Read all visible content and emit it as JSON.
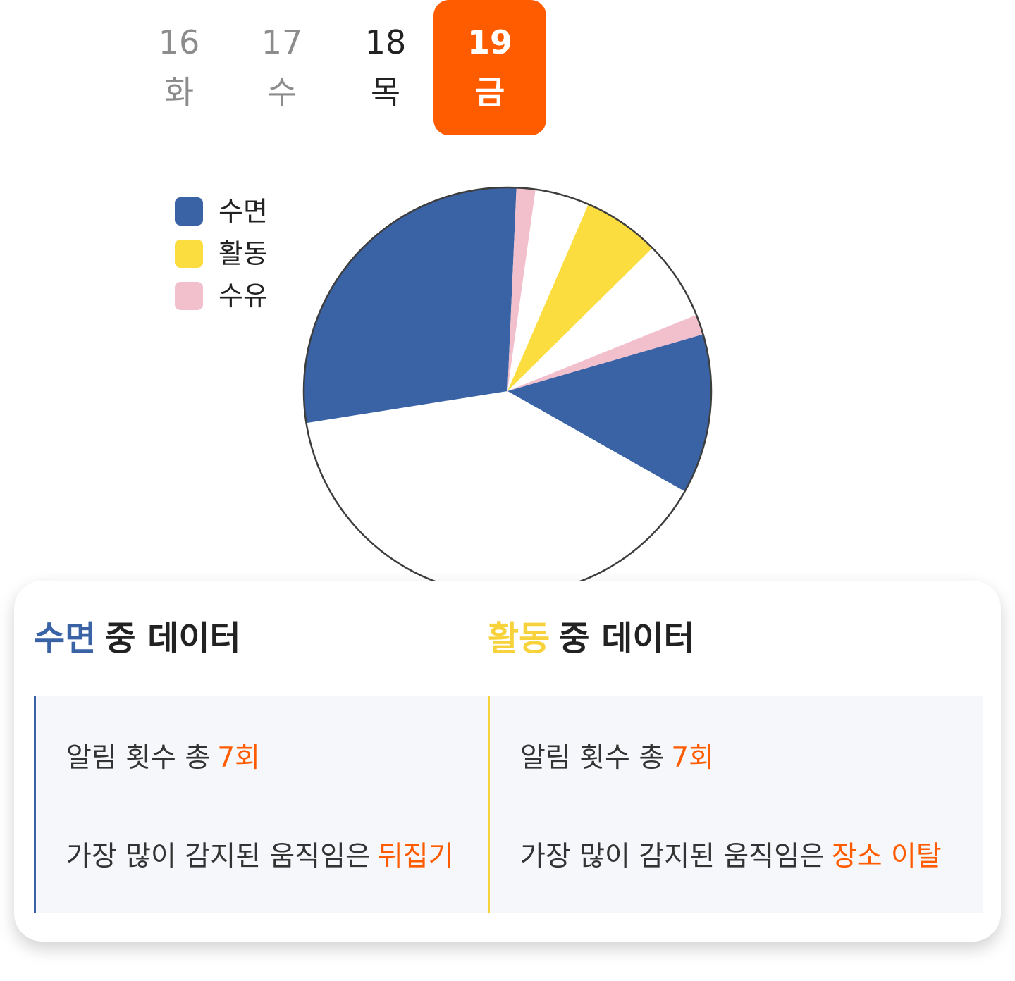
{
  "date_selector": {
    "days": [
      {
        "date": "16",
        "weekday": "화"
      },
      {
        "date": "17",
        "weekday": "수"
      },
      {
        "date": "18",
        "weekday": "목"
      },
      {
        "date": "19",
        "weekday": "금"
      }
    ],
    "selected_date": "19",
    "accent_color": "#ff5c00"
  },
  "legend": [
    {
      "label": "수면",
      "color": "#3a63a6"
    },
    {
      "label": "활동",
      "color": "#fcdd3f"
    },
    {
      "label": "수유",
      "color": "#f2c0cd"
    }
  ],
  "chart_data": {
    "type": "pie",
    "title": "",
    "start_at": "top, clockwise",
    "slices": [
      {
        "category": "수면",
        "color": "#3a63a6",
        "share": 0.7
      },
      {
        "category": "수유",
        "color": "#f2c0cd",
        "share": 1.5
      },
      {
        "category": "",
        "color": "#ffffff",
        "share": 4.3
      },
      {
        "category": "활동",
        "color": "#fcdd3f",
        "share": 6.1
      },
      {
        "category": "",
        "color": "#ffffff",
        "share": 6.3
      },
      {
        "category": "수유",
        "color": "#f2c0cd",
        "share": 1.6
      },
      {
        "category": "수면",
        "color": "#3a63a6",
        "share": 12.7
      },
      {
        "category": "",
        "color": "#ffffff",
        "share": 39.3
      },
      {
        "category": "수면",
        "color": "#3a63a6",
        "share": 27.5
      }
    ]
  },
  "summary": {
    "sleep": {
      "keyword": "수면",
      "suffix": "중 데이터",
      "keyword_color": "#3a63a6",
      "alert_text": "알림 횟수 총",
      "alert_value": "7회",
      "motion_text": "가장 많이 감지된 움직임은",
      "motion_value": "뒤집기"
    },
    "activity": {
      "keyword": "활동",
      "suffix": "중 데이터",
      "keyword_color": "#f7d23a",
      "alert_text": "알림 횟수 총",
      "alert_value": "7회",
      "motion_text": "가장 많이 감지된 움직임은",
      "motion_value": "장소 이탈"
    }
  }
}
